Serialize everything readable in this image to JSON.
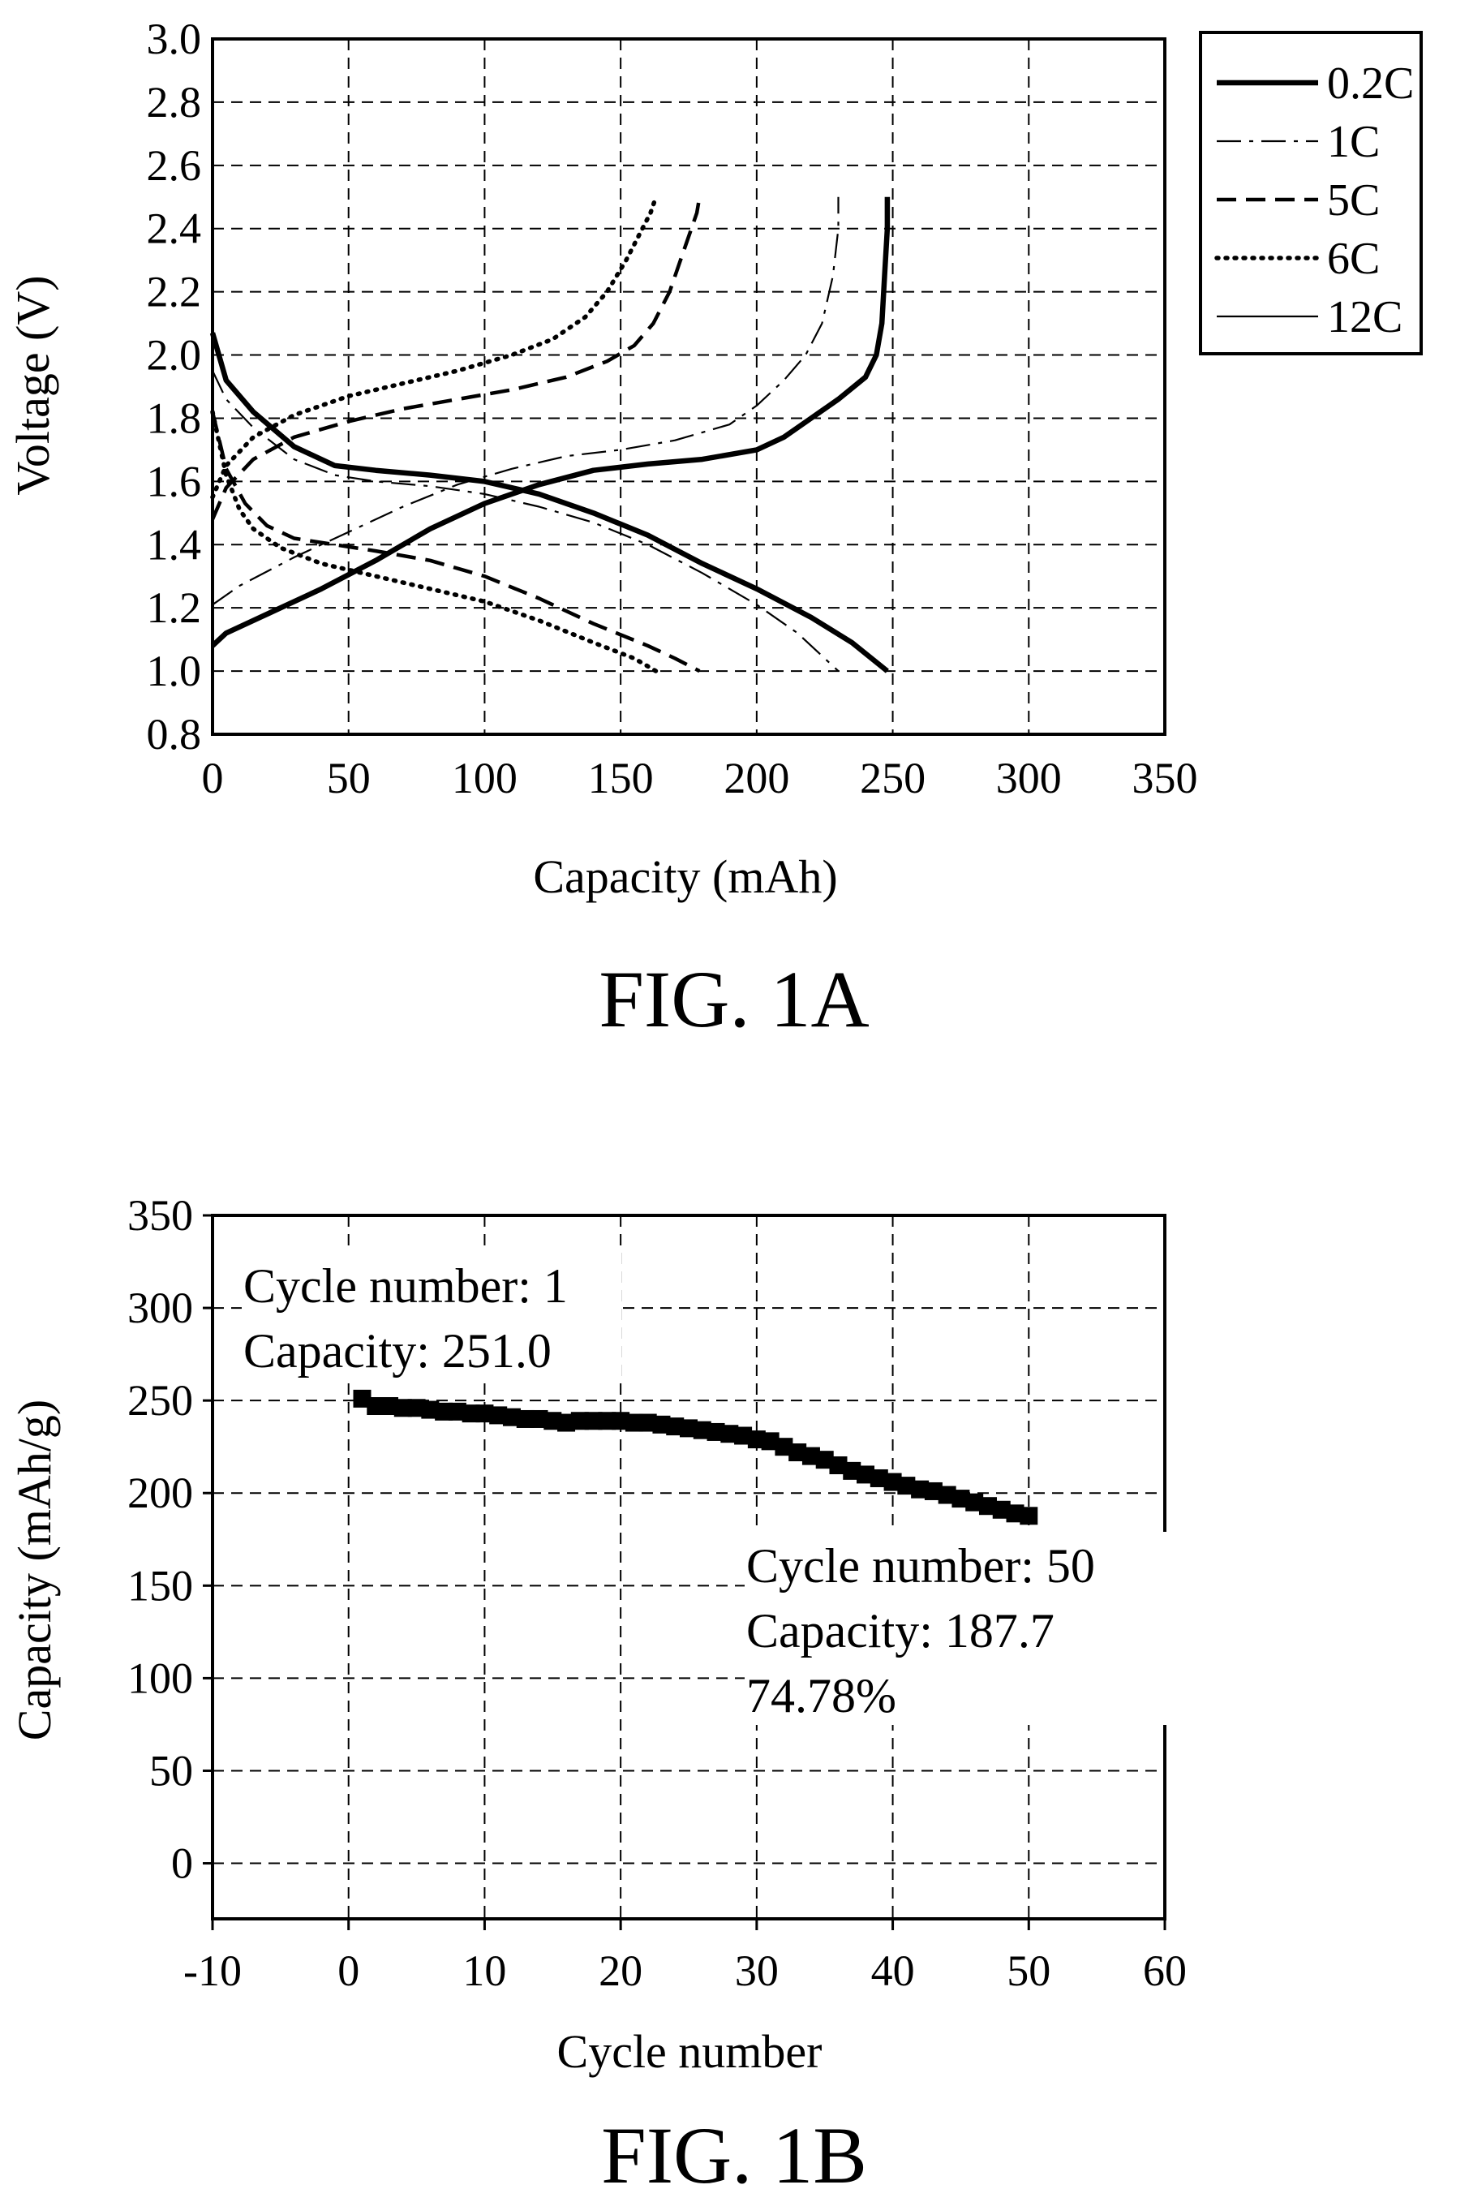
{
  "chart_data": [
    {
      "type": "line",
      "figure_label": "FIG. 1A",
      "xlabel": "Capacity (mAh)",
      "ylabel": "Voltage (V)",
      "xlim": [
        0,
        350
      ],
      "ylim": [
        0.8,
        3.0
      ],
      "xticks": [
        "0",
        "50",
        "100",
        "150",
        "200",
        "250",
        "300",
        "350"
      ],
      "yticks": [
        "0.8",
        "1.0",
        "1.2",
        "1.4",
        "1.6",
        "1.8",
        "2.0",
        "2.2",
        "2.4",
        "2.6",
        "2.8",
        "3.0"
      ],
      "grid": true,
      "legend_position": "top-right, outside plot",
      "series": [
        {
          "name": "0.2C",
          "style": "solid-thick",
          "discharge": {
            "x": [
              0,
              5,
              15,
              30,
              45,
              60,
              80,
              100,
              120,
              140,
              160,
              180,
              200,
              220,
              235,
              248
            ],
            "y": [
              2.07,
              1.92,
              1.82,
              1.71,
              1.65,
              1.635,
              1.62,
              1.6,
              1.56,
              1.5,
              1.43,
              1.34,
              1.26,
              1.17,
              1.09,
              1.0
            ]
          },
          "charge": {
            "x": [
              0,
              5,
              20,
              40,
              60,
              80,
              100,
              120,
              140,
              160,
              180,
              200,
              210,
              220,
              230,
              240,
              244,
              246,
              247,
              248,
              248
            ],
            "y": [
              1.08,
              1.12,
              1.18,
              1.26,
              1.35,
              1.45,
              1.53,
              1.59,
              1.635,
              1.655,
              1.67,
              1.7,
              1.74,
              1.8,
              1.86,
              1.93,
              2.0,
              2.1,
              2.25,
              2.4,
              2.5
            ]
          }
        },
        {
          "name": "1C",
          "style": "dash-dot-thin",
          "discharge": {
            "x": [
              0,
              5,
              15,
              30,
              45,
              60,
              80,
              100,
              120,
              140,
              160,
              180,
              200,
              215,
              230
            ],
            "y": [
              1.95,
              1.86,
              1.77,
              1.67,
              1.62,
              1.6,
              1.585,
              1.56,
              1.52,
              1.47,
              1.4,
              1.31,
              1.21,
              1.12,
              1.0
            ]
          },
          "charge": {
            "x": [
              0,
              10,
              30,
              50,
              70,
              90,
              110,
              130,
              150,
              170,
              190,
              200,
              210,
              218,
              224,
              228,
              230,
              230
            ],
            "y": [
              1.21,
              1.27,
              1.36,
              1.44,
              1.52,
              1.59,
              1.64,
              1.68,
              1.7,
              1.73,
              1.78,
              1.84,
              1.92,
              2.0,
              2.1,
              2.25,
              2.4,
              2.5
            ]
          }
        },
        {
          "name": "5C",
          "style": "dashed",
          "discharge": {
            "x": [
              0,
              5,
              12,
              20,
              30,
              45,
              60,
              80,
              100,
              120,
              140,
              160,
              170,
              179
            ],
            "y": [
              1.82,
              1.64,
              1.53,
              1.46,
              1.42,
              1.4,
              1.38,
              1.35,
              1.3,
              1.23,
              1.15,
              1.08,
              1.04,
              1.0
            ]
          },
          "charge": {
            "x": [
              0,
              5,
              15,
              30,
              50,
              70,
              90,
              110,
              130,
              145,
              155,
              162,
              168,
              172,
              176,
              178,
              179
            ],
            "y": [
              1.48,
              1.58,
              1.67,
              1.74,
              1.79,
              1.83,
              1.86,
              1.89,
              1.93,
              1.98,
              2.03,
              2.1,
              2.2,
              2.3,
              2.4,
              2.45,
              2.5
            ]
          }
        },
        {
          "name": "6C",
          "style": "dotted",
          "discharge": {
            "x": [
              0,
              5,
              10,
              15,
              25,
              40,
              60,
              80,
              100,
              120,
              140,
              155,
              163
            ],
            "y": [
              1.82,
              1.62,
              1.51,
              1.45,
              1.39,
              1.34,
              1.3,
              1.26,
              1.22,
              1.16,
              1.09,
              1.04,
              1.0
            ]
          },
          "charge": {
            "x": [
              0,
              5,
              15,
              30,
              50,
              70,
              90,
              110,
              125,
              137,
              145,
              152,
              158,
              161,
              163
            ],
            "y": [
              1.55,
              1.65,
              1.74,
              1.81,
              1.87,
              1.91,
              1.95,
              2.0,
              2.05,
              2.12,
              2.2,
              2.3,
              2.4,
              2.45,
              2.5
            ]
          }
        },
        {
          "name": "12C",
          "style": "solid-thin",
          "discharge": {
            "x": [],
            "y": []
          },
          "charge": {
            "x": [],
            "y": []
          }
        }
      ]
    },
    {
      "type": "scatter",
      "figure_label": "FIG. 1B",
      "xlabel": "Cycle number",
      "ylabel": "Capacity (mAh/g)",
      "xlim": [
        -10,
        60
      ],
      "ylim": [
        -30,
        350
      ],
      "xticks": [
        "-10",
        "0",
        "10",
        "20",
        "30",
        "40",
        "50",
        "60"
      ],
      "yticks": [
        "0",
        "50",
        "100",
        "150",
        "200",
        "250",
        "300",
        "350"
      ],
      "grid": true,
      "x": [
        1,
        2,
        3,
        4,
        5,
        6,
        7,
        8,
        9,
        10,
        11,
        12,
        13,
        14,
        15,
        16,
        17,
        18,
        19,
        20,
        21,
        22,
        23,
        24,
        25,
        26,
        27,
        28,
        29,
        30,
        31,
        32,
        33,
        34,
        35,
        36,
        37,
        38,
        39,
        40,
        41,
        42,
        43,
        44,
        45,
        46,
        47,
        48,
        49,
        50
      ],
      "values": [
        251.0,
        247,
        247,
        246,
        246,
        245,
        244,
        244,
        243,
        243,
        242,
        241,
        240,
        240,
        239,
        238,
        239,
        239,
        239,
        239,
        238,
        238,
        237,
        236,
        235,
        234,
        233,
        232,
        231,
        229,
        228,
        225,
        222,
        220,
        218,
        215,
        212,
        210,
        208,
        206,
        204,
        202,
        201,
        199,
        197,
        195,
        193,
        191,
        189,
        187.7
      ],
      "annotations": [
        {
          "lines": [
            "Cycle number: 1",
            "Capacity: 251.0"
          ]
        },
        {
          "lines": [
            "Cycle number: 50",
            "Capacity: 187.7",
            "74.78%"
          ]
        }
      ]
    }
  ]
}
